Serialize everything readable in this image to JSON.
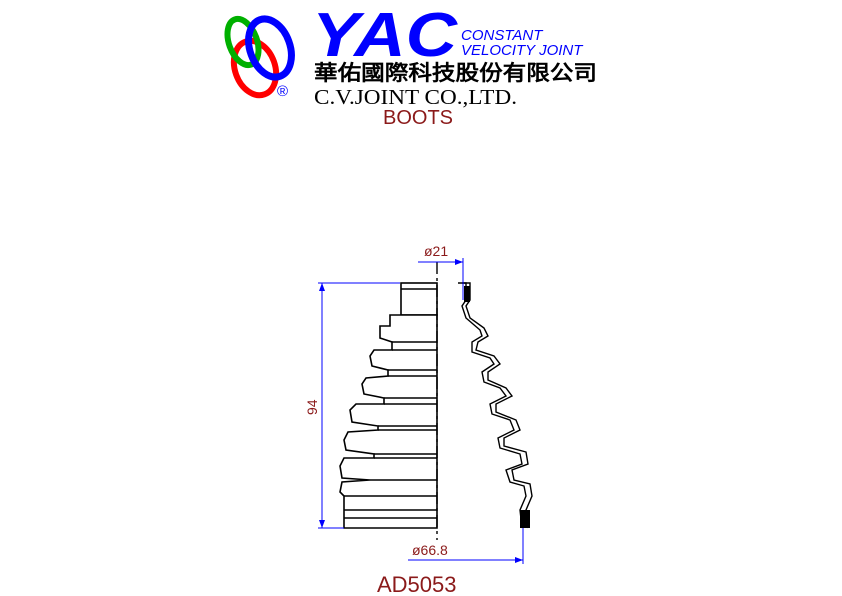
{
  "brand": {
    "logo_text": "YAC",
    "tagline_line1": "CONSTANT",
    "tagline_line2": "VELOCITY JOINT",
    "company_chinese": "華佑國際科技股份有限公司",
    "company_english": "C.V.JOINT CO.,LTD.",
    "registered_mark": "®"
  },
  "drawing": {
    "category": "BOOTS",
    "part_number": "AD5053",
    "dim_small_diameter": "ø21",
    "dim_large_diameter": "ø66.8",
    "dim_height": "94"
  },
  "colors": {
    "blue": "#0000ff",
    "dark_red": "#8b1a1a",
    "black": "#000000",
    "green": "#00b000",
    "red": "#ff0000"
  },
  "icons": {
    "logo_rings": "interlocked-rings-icon"
  }
}
